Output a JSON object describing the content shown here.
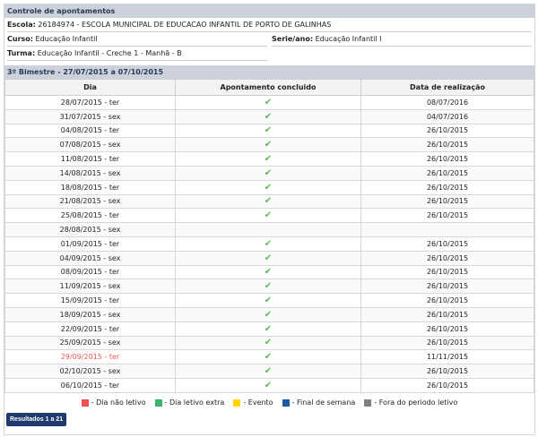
{
  "title": "Controle de apontamentos",
  "escola": {
    "label": "Escola:",
    "value": "26184974 - ESCOLA MUNICIPAL DE EDUCACAO INFANTIL DE PORTO DE GALINHAS"
  },
  "curso": {
    "label": "Curso:",
    "value": "Educação Infantil"
  },
  "serie": {
    "label": "Serie/ano:",
    "value": "Educação Infantil I"
  },
  "turma": {
    "label": "Turma:",
    "value": "Educação Infantil - Creche 1 - Manhã - B"
  },
  "section": "3º Bimestre - 27/07/2015 a 07/10/2015",
  "columns": [
    "Dia",
    "Apontamento concluido",
    "Data de realização"
  ],
  "rows": [
    {
      "dia": "28/07/2015 - ter",
      "done": true,
      "data": "08/07/2016"
    },
    {
      "dia": "31/07/2015 - sex",
      "done": true,
      "data": "04/07/2016"
    },
    {
      "dia": "04/08/2015 - ter",
      "done": true,
      "data": "26/10/2015"
    },
    {
      "dia": "07/08/2015 - sex",
      "done": true,
      "data": "26/10/2015"
    },
    {
      "dia": "11/08/2015 - ter",
      "done": true,
      "data": "26/10/2015"
    },
    {
      "dia": "14/08/2015 - sex",
      "done": true,
      "data": "26/10/2015"
    },
    {
      "dia": "18/08/2015 - ter",
      "done": true,
      "data": "26/10/2015"
    },
    {
      "dia": "21/08/2015 - sex",
      "done": true,
      "data": "26/10/2015"
    },
    {
      "dia": "25/08/2015 - ter",
      "done": true,
      "data": "26/10/2015"
    },
    {
      "dia": "28/08/2015 - sex",
      "done": false,
      "data": ""
    },
    {
      "dia": "01/09/2015 - ter",
      "done": true,
      "data": "26/10/2015"
    },
    {
      "dia": "04/09/2015 - sex",
      "done": true,
      "data": "26/10/2015"
    },
    {
      "dia": "08/09/2015 - ter",
      "done": true,
      "data": "26/10/2015"
    },
    {
      "dia": "11/09/2015 - sex",
      "done": true,
      "data": "26/10/2015"
    },
    {
      "dia": "15/09/2015 - ter",
      "done": true,
      "data": "26/10/2015"
    },
    {
      "dia": "18/09/2015 - sex",
      "done": true,
      "data": "26/10/2015"
    },
    {
      "dia": "22/09/2015 - ter",
      "done": true,
      "data": "26/10/2015"
    },
    {
      "dia": "25/09/2015 - sex",
      "done": true,
      "data": "26/10/2015"
    },
    {
      "dia": "29/09/2015 - ter",
      "done": true,
      "data": "11/11/2015",
      "status": "nao-letivo"
    },
    {
      "dia": "02/10/2015 - sex",
      "done": true,
      "data": "26/10/2015"
    },
    {
      "dia": "06/10/2015 - ter",
      "done": true,
      "data": "26/10/2015"
    }
  ],
  "check_icon": "✔",
  "legend": [
    {
      "label": "- Dia não letivo",
      "color": "#f05050"
    },
    {
      "label": "- Dia letivo extra",
      "color": "#3cb371"
    },
    {
      "label": "- Evento",
      "color": "#ffd400"
    },
    {
      "label": "- Final de semana",
      "color": "#1f5aa8"
    },
    {
      "label": "- Fora do periodo letivo",
      "color": "#808080"
    }
  ],
  "results_button": "Resultados 1 a 21"
}
